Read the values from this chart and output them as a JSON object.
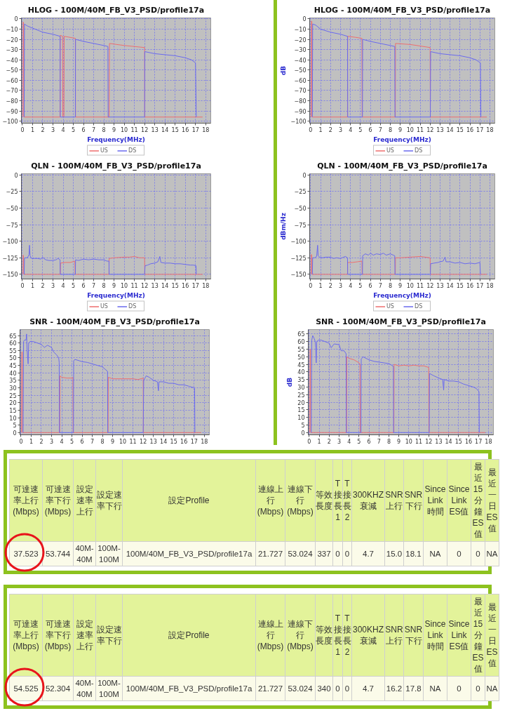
{
  "chart_data": [
    {
      "type": "line",
      "title": "HLOG - 100M/40M_FB_V3_PSD/profile17a",
      "xlabel": "Frequency(MHz)",
      "xlim": [
        -0.1,
        18.5
      ],
      "ylim": [
        -102,
        1
      ],
      "xticks": [
        0,
        1,
        2,
        3,
        4,
        5,
        6,
        7,
        8,
        9,
        10,
        11,
        12,
        13,
        14,
        15,
        16,
        17,
        18
      ],
      "yticks": [
        -100,
        -90,
        -80,
        -70,
        -60,
        -50,
        -40,
        -30,
        -20,
        -10,
        0
      ],
      "grid": true,
      "legend": "bottom",
      "series": [
        {
          "name": "US",
          "color": "#ee6e6e",
          "x": [
            0.05,
            0.07,
            0.12,
            0.15,
            3.7,
            3.72,
            3.95,
            3.97,
            4.08,
            4.1,
            5.2,
            5.22,
            8.52,
            8.55,
            10,
            12.0,
            12.02,
            17.7
          ],
          "values": [
            -96,
            -3,
            -5,
            -96,
            -96,
            -16,
            -17,
            -96,
            -96,
            -17,
            -19,
            -96,
            -96,
            -24,
            -26,
            -28,
            -96,
            -96
          ]
        },
        {
          "name": "DS",
          "color": "#6a6aee",
          "x": [
            0.17,
            0.2,
            0.5,
            1,
            2,
            3,
            3.7,
            3.72,
            5.2,
            5.22,
            6,
            7,
            8,
            8.4,
            8.42,
            12.0,
            12.02,
            13,
            14,
            15,
            16,
            16.6,
            17.0,
            17.08
          ],
          "values": [
            -96,
            -5,
            -7,
            -9,
            -13,
            -15,
            -17,
            -96,
            -96,
            -20,
            -22,
            -24,
            -26,
            -27,
            -96,
            -96,
            -32,
            -34,
            -35,
            -36,
            -38,
            -40,
            -43,
            -96
          ]
        }
      ]
    },
    {
      "type": "line",
      "title": "HLOG - 100M/40M_FB_V3_PSD/profile17a",
      "xlabel": "Frequency(MHz)",
      "ylabel": "dB",
      "xlim": [
        -0.1,
        18.5
      ],
      "ylim": [
        -102,
        1
      ],
      "xticks": [
        0,
        1,
        2,
        3,
        4,
        5,
        6,
        7,
        8,
        9,
        10,
        11,
        12,
        13,
        14,
        15,
        16,
        17,
        18
      ],
      "yticks": [
        -100,
        -90,
        -80,
        -70,
        -60,
        -50,
        -40,
        -30,
        -20,
        -10,
        0
      ],
      "grid": true,
      "legend": "bottom",
      "series": [
        {
          "name": "US",
          "color": "#ee6e6e",
          "x": [
            0.05,
            0.08,
            0.12,
            0.15,
            3.7,
            3.72,
            4.5,
            5.15,
            5.17,
            8.5,
            8.52,
            10,
            12.0,
            12.02,
            17.7
          ],
          "values": [
            -96,
            -2,
            -3,
            -96,
            -96,
            -17,
            -18,
            -19,
            -96,
            -96,
            -24,
            -25,
            -28,
            -96,
            -96
          ]
        },
        {
          "name": "DS",
          "color": "#6a6aee",
          "x": [
            0.17,
            0.2,
            0.5,
            1,
            2,
            3,
            3.7,
            3.72,
            5.2,
            5.22,
            6,
            7,
            8,
            8.45,
            8.47,
            12.02,
            12.05,
            13,
            14,
            15,
            16,
            16.6,
            17.05,
            17.1
          ],
          "values": [
            -96,
            -5,
            -6,
            -10,
            -13,
            -15,
            -17,
            -96,
            -96,
            -20,
            -22,
            -24,
            -26,
            -27,
            -96,
            -96,
            -32,
            -34,
            -35,
            -36,
            -38,
            -40,
            -43,
            -96
          ]
        }
      ]
    },
    {
      "type": "line",
      "title": "QLN - 100M/40M_FB_V3_PSD/profile17a",
      "xlabel": "Frequency(MHz)",
      "xlim": [
        -0.1,
        18.5
      ],
      "ylim": [
        -157,
        2
      ],
      "xticks": [
        0,
        1,
        2,
        3,
        4,
        5,
        6,
        7,
        8,
        9,
        10,
        11,
        12,
        13,
        14,
        15,
        16,
        17,
        18
      ],
      "yticks": [
        -150,
        -125,
        -100,
        -75,
        -50,
        -25,
        0
      ],
      "grid": true,
      "legend": "bottom",
      "series": [
        {
          "name": "US",
          "color": "#ee6e6e",
          "x": [
            0.05,
            0.08,
            0.12,
            0.15,
            3.72,
            3.75,
            4.2,
            4.7,
            5.15,
            5.18,
            8.5,
            8.52,
            9,
            10,
            10.5,
            11,
            11.5,
            12.0,
            12.02,
            17.7
          ],
          "values": [
            -150,
            -121,
            -125,
            -150,
            -150,
            -133,
            -132,
            -132,
            -130,
            -150,
            -150,
            -126,
            -125,
            -124,
            -124,
            -123,
            -125,
            -125,
            -150,
            -150
          ]
        },
        {
          "name": "DS",
          "color": "#6a6aee",
          "x": [
            0.17,
            0.2,
            0.3,
            0.5,
            0.65,
            0.7,
            0.75,
            0.9,
            1.2,
            1.5,
            1.8,
            2.0,
            2.1,
            2.3,
            2.6,
            3.0,
            3.3,
            3.5,
            3.7,
            3.72,
            5.2,
            5.22,
            5.5,
            6,
            6.5,
            7,
            7.5,
            8,
            8.3,
            8.5,
            8.52,
            12.0,
            12.05,
            12.3,
            12.6,
            13,
            13.3,
            13.5,
            13.6,
            14,
            14.5,
            15,
            15.5,
            16,
            16.5,
            16.8,
            17.05,
            17.08
          ],
          "values": [
            -150,
            -126,
            -125,
            -125,
            -120,
            -106,
            -122,
            -126,
            -126,
            -126,
            -127,
            -124,
            -126,
            -128,
            -129,
            -129,
            -128,
            -126,
            -128,
            -150,
            -150,
            -128,
            -129,
            -127,
            -128,
            -127,
            -128,
            -128,
            -130,
            -130,
            -150,
            -150,
            -137,
            -136,
            -134,
            -133,
            -131,
            -123,
            -132,
            -133,
            -133,
            -134,
            -134,
            -135,
            -136,
            -136,
            -137,
            -150
          ]
        }
      ]
    },
    {
      "type": "line",
      "title": "QLN - 100M/40M_FB_V3_PSD/profile17a",
      "xlabel": "Frequency(MHz)",
      "ylabel": "dBm/Hz",
      "xlim": [
        -0.1,
        18.5
      ],
      "ylim": [
        -157,
        2
      ],
      "xticks": [
        0,
        1,
        2,
        3,
        4,
        5,
        6,
        7,
        8,
        9,
        10,
        11,
        12,
        13,
        14,
        15,
        16,
        17,
        18
      ],
      "yticks": [
        -150,
        -125,
        -100,
        -75,
        -50,
        -25,
        0
      ],
      "grid": true,
      "legend": "bottom",
      "series": [
        {
          "name": "US",
          "color": "#ee6e6e",
          "x": [
            0.05,
            0.08,
            0.12,
            0.15,
            3.7,
            3.72,
            4.2,
            4.7,
            5.15,
            5.17,
            8.5,
            8.52,
            9,
            10,
            11,
            11.5,
            12.0,
            12.02,
            17.7
          ],
          "values": [
            -150,
            -120,
            -124,
            -150,
            -150,
            -132,
            -132,
            -131,
            -130,
            -150,
            -150,
            -125,
            -125,
            -124,
            -123,
            -124,
            -125,
            -150,
            -150
          ]
        },
        {
          "name": "DS",
          "color": "#6a6aee",
          "x": [
            0.17,
            0.2,
            0.4,
            0.6,
            0.7,
            0.75,
            0.9,
            1.2,
            1.5,
            2,
            2.3,
            2.6,
            3,
            3.3,
            3.5,
            3.7,
            3.72,
            5.2,
            5.22,
            5.5,
            5.8,
            6,
            6.3,
            6.6,
            7,
            7.3,
            7.6,
            8,
            8.3,
            8.45,
            8.47,
            12.02,
            12.05,
            12.4,
            12.8,
            13,
            13.3,
            13.5,
            13.6,
            14,
            14.5,
            15,
            15.5,
            16,
            16.5,
            17,
            17.05
          ],
          "values": [
            -150,
            -125,
            -125,
            -123,
            -106,
            -122,
            -124,
            -125,
            -124,
            -124,
            -126,
            -125,
            -126,
            -124,
            -123,
            -125,
            -150,
            -150,
            -122,
            -119,
            -121,
            -118,
            -121,
            -119,
            -120,
            -118,
            -121,
            -119,
            -121,
            -122,
            -150,
            -150,
            -134,
            -133,
            -132,
            -131,
            -130,
            -124,
            -131,
            -131,
            -133,
            -132,
            -134,
            -133,
            -134,
            -132,
            -150
          ]
        }
      ]
    },
    {
      "type": "line",
      "title": "SNR - 100M/40M_FB_V3_PSD/profile17a",
      "xlim": [
        -0.1,
        18.5
      ],
      "ylim": [
        -1.5,
        69
      ],
      "xticks": [
        0,
        1,
        2,
        3,
        4,
        5,
        6,
        7,
        8,
        9,
        10,
        11,
        12,
        13,
        14,
        15,
        16,
        17,
        18
      ],
      "yticks": [
        0,
        5,
        10,
        15,
        20,
        25,
        30,
        35,
        40,
        45,
        50,
        55,
        60,
        65
      ],
      "grid": true,
      "series": [
        {
          "color": "#ee6e6e",
          "x": [
            0.05,
            0.08,
            0.12,
            0.15,
            3.8,
            3.82,
            4.0,
            4.5,
            5.0,
            5.1,
            5.12,
            8.55,
            8.57,
            9,
            10,
            11,
            11.5,
            12.0,
            12.02,
            17.7
          ],
          "values": [
            0,
            54,
            54,
            0,
            0,
            38,
            37,
            36.5,
            36.5,
            37,
            0,
            0,
            37,
            36,
            36,
            36,
            35.5,
            36.5,
            0,
            0
          ]
        },
        {
          "color": "#6a6aee",
          "x": [
            0.2,
            0.25,
            0.35,
            0.5,
            0.55,
            0.6,
            0.7,
            0.75,
            0.9,
            1.2,
            1.6,
            2.0,
            2.3,
            2.6,
            3.0,
            3.2,
            3.5,
            3.7,
            3.75,
            3.77,
            5.15,
            5.17,
            5.3,
            6,
            6.5,
            7,
            7.5,
            8,
            8.5,
            8.52,
            12.0,
            12.05,
            12.3,
            12.6,
            13,
            13.4,
            13.5,
            13.55,
            14,
            14.5,
            15,
            15.5,
            16,
            16.5,
            17,
            17.05,
            17.08
          ],
          "values": [
            0,
            61,
            62,
            62,
            66,
            55,
            46,
            60,
            61,
            61,
            60,
            59,
            57,
            58.5,
            57,
            54,
            52,
            50,
            47,
            0,
            0,
            48,
            49,
            47.5,
            47,
            46,
            45,
            44,
            41,
            0,
            0,
            35,
            38,
            37,
            35,
            34,
            28,
            34,
            34,
            33,
            33,
            32,
            32,
            31,
            30,
            29.5,
            0
          ]
        }
      ]
    },
    {
      "type": "line",
      "title": "SNR - 100M/40M_FB_V3_PSD/profile17a",
      "ylabel": "dB",
      "xlim": [
        -0.1,
        18.5
      ],
      "ylim": [
        -1.5,
        68
      ],
      "xticks": [
        0,
        1,
        2,
        3,
        4,
        5,
        6,
        7,
        8,
        9,
        10,
        11,
        12,
        13,
        14,
        15,
        16,
        17,
        18
      ],
      "yticks": [
        0,
        5,
        10,
        15,
        20,
        25,
        30,
        35,
        40,
        45,
        50,
        55,
        60,
        65
      ],
      "grid": true,
      "series": [
        {
          "color": "#ee6e6e",
          "x": [
            0.05,
            0.08,
            0.12,
            0.15,
            3.75,
            3.77,
            4.0,
            4.5,
            5.0,
            5.1,
            5.12,
            8.5,
            8.52,
            9,
            9.5,
            10,
            10.5,
            11,
            11.5,
            12.0,
            12.02,
            17.7
          ],
          "values": [
            0,
            55,
            55,
            0,
            0,
            50,
            49,
            48,
            46,
            45,
            0,
            0,
            45,
            44,
            44.5,
            44,
            44.5,
            44,
            44,
            43,
            0,
            0
          ]
        },
        {
          "color": "#6a6aee",
          "x": [
            0.2,
            0.25,
            0.35,
            0.5,
            0.6,
            0.65,
            0.7,
            0.75,
            0.9,
            1.2,
            1.6,
            2.0,
            2.2,
            2.5,
            3.0,
            3.2,
            3.5,
            3.7,
            3.72,
            5.2,
            5.22,
            5.4,
            6,
            6.5,
            7,
            7.5,
            8,
            8.4,
            8.45,
            8.47,
            12.05,
            12.08,
            12.5,
            13,
            13.4,
            13.5,
            13.55,
            14,
            14.5,
            15,
            15.5,
            16,
            16.5,
            16.8,
            17.05,
            17.08
          ],
          "values": [
            0,
            61,
            64,
            62,
            60,
            56,
            46,
            60,
            61,
            61,
            60,
            59,
            56,
            58.5,
            58,
            54,
            54,
            52,
            0,
            0,
            48.5,
            50,
            48,
            47,
            46.5,
            46,
            45.5,
            44,
            43,
            0,
            0,
            39,
            37.5,
            36,
            35,
            28,
            35,
            34,
            34,
            33.5,
            32,
            31,
            30,
            29,
            27,
            0
          ]
        }
      ]
    },
    {
      "type": "other",
      "categories": [
        "可達速率上行(Mbps)",
        "可達速率下行(Mbps)",
        "設定速率上行",
        "設定速率下行",
        "設定Profile",
        "連線上行(Mbps)",
        "連線下行(Mbps)",
        "等效長度",
        "T接長1",
        "T接長2",
        "300KHZ衰減",
        "SNR上行",
        "SNR下行",
        "Since Link時間",
        "Since Link ES值",
        "最近15分鐘ES值",
        "最近一日ES值"
      ],
      "annotations": [
        "37.523",
        "53.744",
        "40M-40M",
        "100M-100M",
        "100M/40M_FB_V3_PSD/profile17a",
        "21.727",
        "53.024",
        "337",
        "0",
        "0",
        "4.7",
        "15.0",
        "18.1",
        "NA",
        "0",
        "0",
        "NA"
      ]
    },
    {
      "type": "other",
      "categories": [
        "可達速率上行(Mbps)",
        "可達速率下行(Mbps)",
        "設定速率上行",
        "設定速率下行",
        "設定Profile",
        "連線上行(Mbps)",
        "連線下行(Mbps)",
        "等效長度",
        "T接長1",
        "T接長2",
        "300KHZ衰減",
        "SNR上行",
        "SNR下行",
        "Since Link時間",
        "Since Link ES值",
        "最近15分鐘ES值",
        "最近一日ES值"
      ],
      "annotations": [
        "54.525",
        "52.304",
        "40M-40M",
        "100M-100M",
        "100M/40M_FB_V3_PSD/profile17a",
        "21.727",
        "53.024",
        "340",
        "0",
        "0",
        "4.7",
        "16.2",
        "17.8",
        "NA",
        "0",
        "0",
        "NA"
      ]
    }
  ]
}
